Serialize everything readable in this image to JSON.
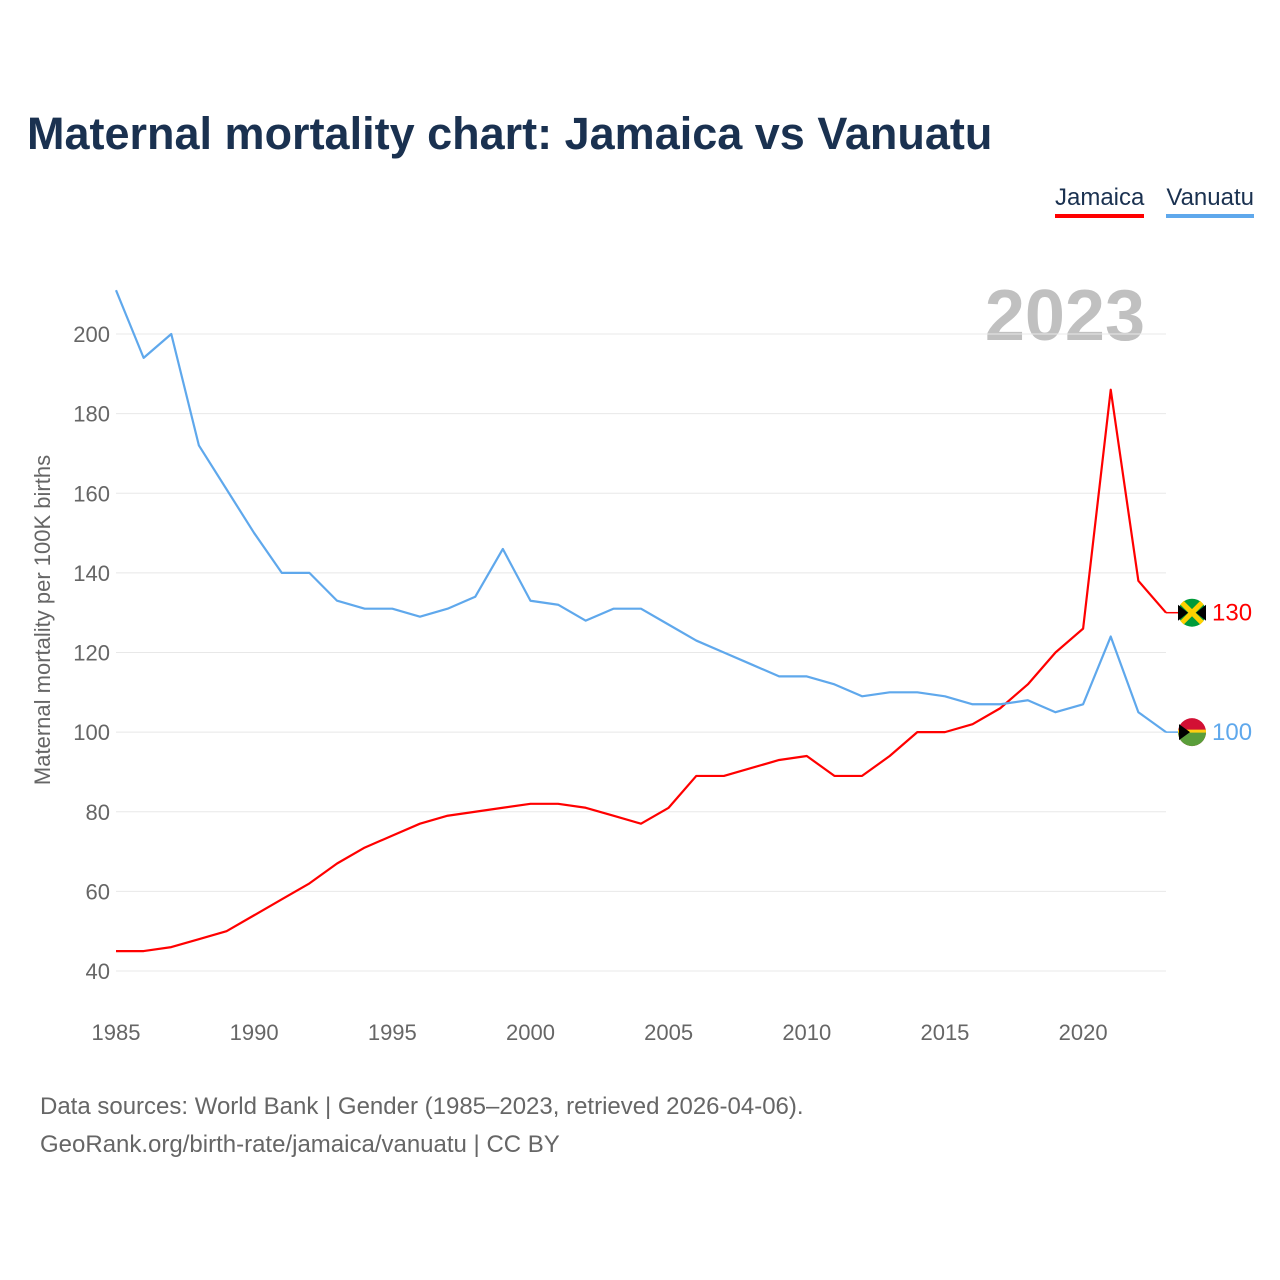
{
  "title": "Maternal mortality chart: Jamaica vs Vanuatu",
  "source_line1": "Data sources: World Bank | Gender (1985–2023, retrieved 2026-04-06).",
  "source_line2": "GeoRank.org/birth-rate/jamaica/vanuatu | CC BY",
  "chart_data": {
    "type": "line",
    "title": "Maternal mortality chart: Jamaica vs Vanuatu",
    "year_label": "2023",
    "xlabel": "",
    "ylabel": "Maternal mortality per 100K births",
    "xlim": [
      1985,
      2023
    ],
    "ylim": [
      30,
      215
    ],
    "xticks": [
      1985,
      1990,
      1995,
      2000,
      2005,
      2010,
      2015,
      2020
    ],
    "yticks": [
      40,
      60,
      80,
      100,
      120,
      140,
      160,
      180,
      200
    ],
    "grid": true,
    "legend_placement": "top-right",
    "x": [
      1985,
      1986,
      1987,
      1988,
      1989,
      1990,
      1991,
      1992,
      1993,
      1994,
      1995,
      1996,
      1997,
      1998,
      1999,
      2000,
      2001,
      2002,
      2003,
      2004,
      2005,
      2006,
      2007,
      2008,
      2009,
      2010,
      2011,
      2012,
      2013,
      2014,
      2015,
      2016,
      2017,
      2018,
      2019,
      2020,
      2021,
      2022,
      2023
    ],
    "series": [
      {
        "name": "Jamaica",
        "color": "#ff0000",
        "end_label": "130",
        "values": [
          45,
          45,
          46,
          48,
          50,
          54,
          58,
          62,
          67,
          71,
          74,
          77,
          79,
          80,
          81,
          82,
          82,
          81,
          79,
          77,
          81,
          89,
          89,
          91,
          93,
          94,
          89,
          89,
          94,
          100,
          100,
          102,
          106,
          112,
          120,
          126,
          186,
          138,
          130
        ]
      },
      {
        "name": "Vanuatu",
        "color": "#5fa8ec",
        "end_label": "100",
        "values": [
          211,
          194,
          200,
          172,
          161,
          150,
          140,
          140,
          133,
          131,
          131,
          129,
          131,
          134,
          146,
          133,
          132,
          128,
          131,
          131,
          127,
          123,
          120,
          117,
          114,
          114,
          112,
          109,
          110,
          110,
          109,
          107,
          107,
          108,
          105,
          107,
          124,
          105,
          100
        ]
      }
    ]
  }
}
